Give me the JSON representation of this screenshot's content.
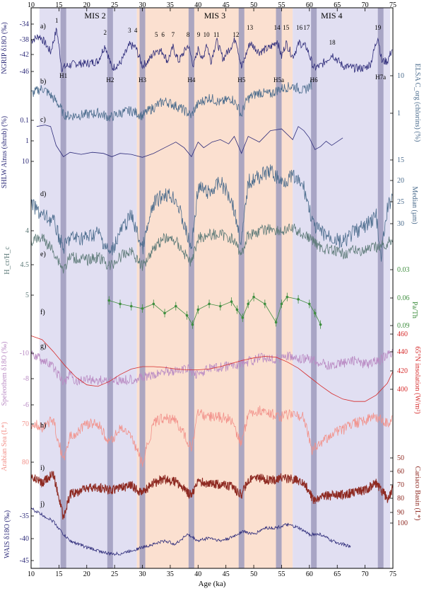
{
  "chart_data": {
    "type": "line",
    "x_axis": {
      "label": "Age (ka)",
      "range": [
        10,
        75
      ],
      "ticks": [
        10,
        15,
        20,
        25,
        30,
        35,
        40,
        45,
        50,
        55,
        60,
        65,
        70,
        75
      ]
    },
    "stages": [
      {
        "name": "MIS 2",
        "range": [
          14,
          29
        ]
      },
      {
        "name": "MIS 3",
        "range": [
          29,
          57
        ]
      },
      {
        "name": "MIS 4",
        "range": [
          57,
          71
        ]
      }
    ],
    "heinrich_events": [
      {
        "name": "H1",
        "age": 15.8
      },
      {
        "name": "H2",
        "age": 24.2
      },
      {
        "name": "H3",
        "age": 30.0
      },
      {
        "name": "H4",
        "age": 38.8
      },
      {
        "name": "H5",
        "age": 47.8
      },
      {
        "name": "H5a",
        "age": 54.5
      },
      {
        "name": "H6",
        "age": 60.8
      },
      {
        "name": "H7a",
        "age": 72.8
      }
    ],
    "interstadials": [
      {
        "name": "1",
        "age": 14.6
      },
      {
        "name": "2",
        "age": 23.3
      },
      {
        "name": "3",
        "age": 27.7
      },
      {
        "name": "4",
        "age": 28.8
      },
      {
        "name": "5",
        "age": 32.5
      },
      {
        "name": "6",
        "age": 33.7
      },
      {
        "name": "7",
        "age": 35.5
      },
      {
        "name": "8",
        "age": 38.2
      },
      {
        "name": "9",
        "age": 40.1
      },
      {
        "name": "10",
        "age": 41.5
      },
      {
        "name": "11",
        "age": 43.3
      },
      {
        "name": "12",
        "age": 46.8
      },
      {
        "name": "13",
        "age": 49.3
      },
      {
        "name": "14",
        "age": 54.2
      },
      {
        "name": "15",
        "age": 55.8
      },
      {
        "name": "16",
        "age": 58.2
      },
      {
        "name": "17",
        "age": 59.5
      },
      {
        "name": "18",
        "age": 64.1
      },
      {
        "name": "19",
        "age": 72.3
      }
    ],
    "panel_letters": [
      "a)",
      "b)",
      "c)",
      "d)",
      "e)",
      "f)",
      "g)",
      "h)",
      "i)",
      "j)"
    ],
    "series": [
      {
        "id": "a",
        "name": "NGRIP δ18O (‰)",
        "side": "left",
        "color": "#2e2c7a",
        "ticks": [
          "-34",
          "-38",
          "-42",
          "-46"
        ],
        "x": [
          10,
          11.5,
          12.5,
          13.5,
          14.6,
          15.5,
          16.5,
          18,
          20,
          22,
          23.3,
          24.5,
          26,
          27.7,
          28.8,
          30,
          31,
          32.5,
          33.7,
          34.5,
          35.5,
          36.5,
          38.2,
          39.2,
          40.1,
          40.8,
          41.5,
          42.3,
          43.3,
          44.5,
          46.8,
          47.8,
          49.3,
          51,
          53,
          54.2,
          55,
          55.8,
          57,
          58.2,
          59.5,
          60.8,
          62,
          64.1,
          66,
          68,
          70,
          71,
          72.3,
          73,
          74,
          75
        ],
        "values": [
          -38.5,
          -37.5,
          -39,
          -41,
          -36,
          -44.5,
          -44,
          -43.5,
          -43.5,
          -43,
          -39.5,
          -44.5,
          -43.5,
          -39.5,
          -40,
          -44,
          -43,
          -40.5,
          -41,
          -43,
          -40,
          -43,
          -39.5,
          -44,
          -40,
          -43,
          -39,
          -43,
          -38.5,
          -42.5,
          -38,
          -44.5,
          -39,
          -41,
          -40,
          -38.5,
          -42,
          -39,
          -42,
          -39,
          -40,
          -44.5,
          -44,
          -41.5,
          -44,
          -44.5,
          -44.5,
          -43.5,
          -37.5,
          -43,
          -43,
          -40
        ]
      },
      {
        "id": "b",
        "name": "ELSA C_org (chlorins) (%)",
        "side": "right",
        "color": "#4a6b8c",
        "ticks": [
          "10",
          "1"
        ],
        "x": [
          10,
          12,
          14,
          15.8,
          17,
          20,
          22,
          24.2,
          26,
          28,
          30,
          32,
          34,
          36,
          38.8,
          40,
          42,
          44,
          46,
          47.8,
          49,
          51,
          53,
          55,
          57,
          59,
          60.5
        ],
        "values": [
          4,
          6,
          3,
          1,
          0.9,
          1,
          1.1,
          0.8,
          1.1,
          1.3,
          0.9,
          1.6,
          2.5,
          1.8,
          0.9,
          2,
          3.2,
          2.2,
          3,
          0.9,
          3,
          4.5,
          4,
          6,
          7,
          5,
          8
        ]
      },
      {
        "id": "c",
        "name": "SHLW Alnus (shrub) (%)",
        "side": "left",
        "color": "#2e2c7a",
        "ticks": [
          "0.1",
          "1",
          "10"
        ],
        "x": [
          11,
          12.5,
          13.5,
          14.5,
          15.8,
          17,
          19,
          21,
          23,
          24.5,
          26,
          28,
          30,
          32,
          34,
          36,
          37.5,
          38.8,
          40,
          41,
          42.5,
          44,
          45.5,
          46.5,
          47.8,
          49,
          51,
          53,
          55,
          57,
          58,
          59,
          60,
          61,
          62,
          63,
          64,
          66
        ],
        "values": [
          0.3,
          0.25,
          0.3,
          3,
          12,
          7,
          9,
          7,
          8,
          12,
          8,
          9,
          13,
          8,
          4,
          2,
          4,
          12,
          2,
          4,
          2,
          1.5,
          2.5,
          1,
          8,
          1,
          2,
          0.5,
          0.4,
          1.5,
          0.3,
          0.5,
          1.2,
          5,
          3.5,
          1.8,
          3,
          1.2
        ]
      },
      {
        "id": "d",
        "name": "Median (µm)",
        "side": "right",
        "color": "#4a6b8c",
        "ticks": [
          "15",
          "20",
          "25",
          "30"
        ],
        "x": [
          10,
          12,
          14,
          15.8,
          17,
          20,
          22,
          24.2,
          26,
          28,
          30,
          32,
          34,
          36,
          38.8,
          40,
          42,
          44,
          46,
          47.8,
          49,
          51,
          53,
          55,
          57,
          59,
          60.8,
          62,
          64,
          66,
          68,
          70,
          72,
          72.8,
          74,
          75
        ],
        "values": [
          22,
          24,
          25,
          30,
          28,
          28,
          27,
          31,
          27,
          24,
          30,
          22,
          20,
          21,
          30,
          19,
          20,
          18,
          21,
          29,
          18,
          17,
          16,
          18,
          17,
          19,
          26,
          27,
          28,
          29,
          27,
          26,
          24,
          32,
          23,
          20
        ]
      },
      {
        "id": "e",
        "name": "H_cr/H_c",
        "side": "left",
        "color": "#5d7a78",
        "ticks": [
          "4",
          "4.5",
          "5"
        ],
        "x": [
          10,
          12,
          14,
          15.8,
          17,
          20,
          22,
          24.2,
          26,
          28,
          30,
          32,
          34,
          36,
          38.8,
          40,
          42,
          44,
          46,
          47.8,
          49,
          51,
          53,
          55,
          57,
          59,
          60.8,
          62,
          64,
          66,
          68,
          70,
          72,
          74,
          75
        ],
        "values": [
          4.35,
          4.3,
          4.5,
          4.8,
          4.6,
          4.65,
          4.6,
          4.75,
          4.6,
          4.5,
          4.75,
          4.45,
          4.3,
          4.35,
          4.7,
          4.3,
          4.25,
          4.25,
          4.3,
          4.55,
          4.25,
          4.2,
          4.15,
          4.2,
          4.15,
          4.25,
          4.35,
          4.45,
          4.5,
          4.55,
          4.5,
          4.5,
          4.45,
          4.4,
          4.3
        ]
      },
      {
        "id": "f",
        "name": "Pa/Th",
        "side": "right",
        "color": "#3f8e3f",
        "ticks": [
          "0.03",
          "0.06",
          "0.09"
        ],
        "x": [
          24,
          26,
          28,
          30,
          32,
          34,
          36,
          38,
          39,
          40,
          42,
          44,
          46,
          47,
          48,
          49,
          50,
          52,
          54,
          55,
          56,
          58,
          60,
          61,
          62
        ],
        "values": [
          0.067,
          0.07,
          0.072,
          0.074,
          0.07,
          0.078,
          0.072,
          0.08,
          0.088,
          0.075,
          0.07,
          0.072,
          0.068,
          0.075,
          0.082,
          0.07,
          0.064,
          0.07,
          0.086,
          0.07,
          0.064,
          0.066,
          0.07,
          0.078,
          0.088
        ]
      },
      {
        "id": "g",
        "name": "Speleothem δ18O (‰)",
        "side": "left",
        "color": "#b98ac3",
        "ticks": [
          "-10",
          "-8",
          "-6"
        ],
        "x": [
          10,
          12,
          14,
          15.8,
          17,
          18,
          20,
          22,
          24.2,
          26,
          28,
          30,
          32,
          34,
          36,
          38,
          40,
          42,
          44,
          46,
          48,
          50,
          52,
          54,
          56,
          58,
          60,
          62,
          64,
          66,
          68,
          70,
          72,
          74,
          75
        ],
        "values": [
          -9.5,
          -9,
          -8.5,
          -7.4,
          -8,
          -7.5,
          -7.7,
          -7.6,
          -7.6,
          -7.6,
          -7.7,
          -7.8,
          -7.9,
          -8.3,
          -8.2,
          -8.4,
          -8,
          -8.4,
          -8.5,
          -8.6,
          -8.8,
          -9,
          -9.2,
          -9.1,
          -9.3,
          -9,
          -9.1,
          -8.8,
          -8.6,
          -8.8,
          -9,
          -8.7,
          -8.9,
          -9.3,
          -9.5
        ]
      },
      {
        "id": "g_insolation",
        "name": "65°N insolation (W/m²)",
        "side": "right",
        "color": "#d62b2b",
        "ticks": [
          "460",
          "440",
          "420",
          "400"
        ],
        "x": [
          10,
          12,
          14,
          16,
          18,
          20,
          22,
          24,
          26,
          28,
          30,
          32,
          34,
          36,
          38,
          40,
          42,
          44,
          46,
          48,
          50,
          52,
          54,
          56,
          58,
          60,
          62,
          64,
          66,
          68,
          70,
          72,
          74,
          75
        ],
        "values": [
          475,
          470,
          455,
          438,
          423,
          413,
          411,
          417,
          426,
          433,
          436,
          436,
          435,
          433,
          432,
          432,
          433,
          436,
          440,
          444,
          447,
          449,
          448,
          442,
          434,
          423,
          412,
          402,
          395,
          392,
          392,
          400,
          415,
          430
        ]
      },
      {
        "id": "h",
        "name": "Arabian Sea (L*)",
        "side": "left",
        "color": "#f2918a",
        "ticks": [
          "70",
          "80"
        ],
        "x": [
          10,
          12,
          14,
          15.8,
          17,
          20,
          22,
          24.2,
          26,
          28,
          30,
          32,
          34,
          36,
          38.8,
          40,
          42,
          44,
          46,
          47.8,
          49,
          51,
          53,
          55,
          57,
          59,
          60.5,
          62,
          64,
          66,
          68,
          70,
          72,
          74,
          75
        ],
        "values": [
          72,
          73,
          71,
          83,
          76,
          72,
          72,
          78,
          73,
          76,
          84,
          72,
          70,
          71,
          79,
          69,
          70,
          70,
          71,
          78,
          69,
          68,
          69,
          70,
          69,
          70,
          80,
          78,
          75,
          74,
          72,
          71,
          70,
          72,
          70
        ]
      },
      {
        "id": "i",
        "name": "Cariaco Basin (L*)",
        "side": "right",
        "color": "#8e2a22",
        "ticks": [
          "50",
          "60",
          "70",
          "80",
          "90",
          "100"
        ],
        "x": [
          10,
          12,
          14,
          15.8,
          17,
          20,
          22,
          24.2,
          26,
          28,
          30,
          32,
          34,
          36,
          38.8,
          40,
          42,
          44,
          46,
          47.8,
          49,
          51,
          53,
          55,
          57,
          59,
          60.8,
          62,
          64,
          66,
          68,
          70,
          72,
          74,
          75
        ],
        "values": [
          60,
          65,
          58,
          90,
          73,
          69,
          68,
          70,
          68,
          67,
          72,
          65,
          62,
          64,
          74,
          64,
          65,
          66,
          67,
          74,
          62,
          61,
          63,
          61,
          62,
          64,
          78,
          75,
          74,
          73,
          72,
          70,
          65,
          76,
          69
        ]
      },
      {
        "id": "j",
        "name": "WAIS δ18O (‰)",
        "side": "left",
        "color": "#2e2c7a",
        "ticks": [
          "-35",
          "-40",
          "-45"
        ],
        "x": [
          10,
          12,
          14,
          15.8,
          17,
          20,
          22,
          24,
          26,
          28,
          30,
          32,
          34,
          36,
          38,
          40,
          42,
          44,
          46,
          48,
          50,
          52,
          54,
          56,
          58,
          60,
          62,
          64,
          66,
          67.5
        ],
        "values": [
          -35,
          -36,
          -37,
          -39,
          -40,
          -41,
          -41.5,
          -42,
          -42,
          -41.5,
          -41,
          -40.5,
          -40,
          -40.5,
          -39,
          -40,
          -39.5,
          -40,
          -39.5,
          -38.5,
          -39,
          -38,
          -38,
          -37.5,
          -38,
          -39,
          -39,
          -40,
          -40.5,
          -41
        ]
      }
    ]
  }
}
